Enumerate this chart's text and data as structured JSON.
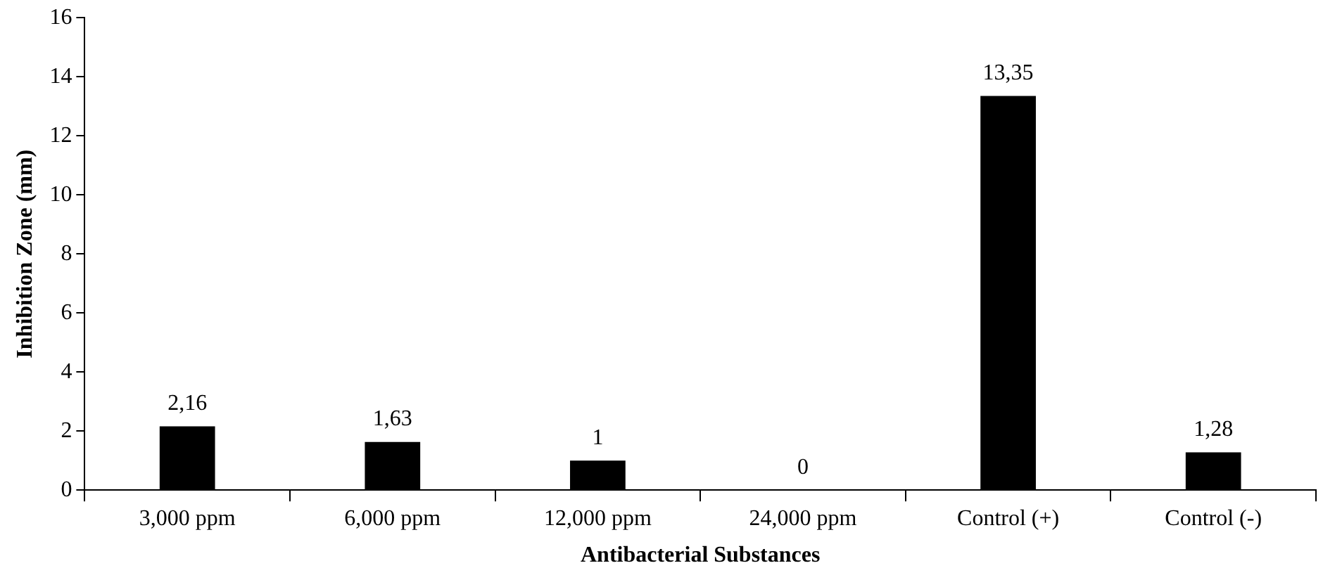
{
  "chart_data": {
    "type": "bar",
    "xlabel": "Antibacterial Substances",
    "ylabel": "Inhibition Zone (mm)",
    "categories": [
      "3,000 ppm",
      "6,000 ppm",
      "12,000 ppm",
      "24,000 ppm",
      "Control (+)",
      "Control (-)"
    ],
    "values": [
      2.16,
      1.63,
      1,
      0,
      13.35,
      1.28
    ],
    "value_labels": [
      "2,16",
      "1,63",
      "1",
      "0",
      "13,35",
      "1,28"
    ],
    "color": "#000000",
    "ylim": [
      0,
      16
    ],
    "yticks": [
      0,
      2,
      4,
      6,
      8,
      10,
      12,
      14,
      16
    ],
    "grid": false,
    "legend": false
  }
}
